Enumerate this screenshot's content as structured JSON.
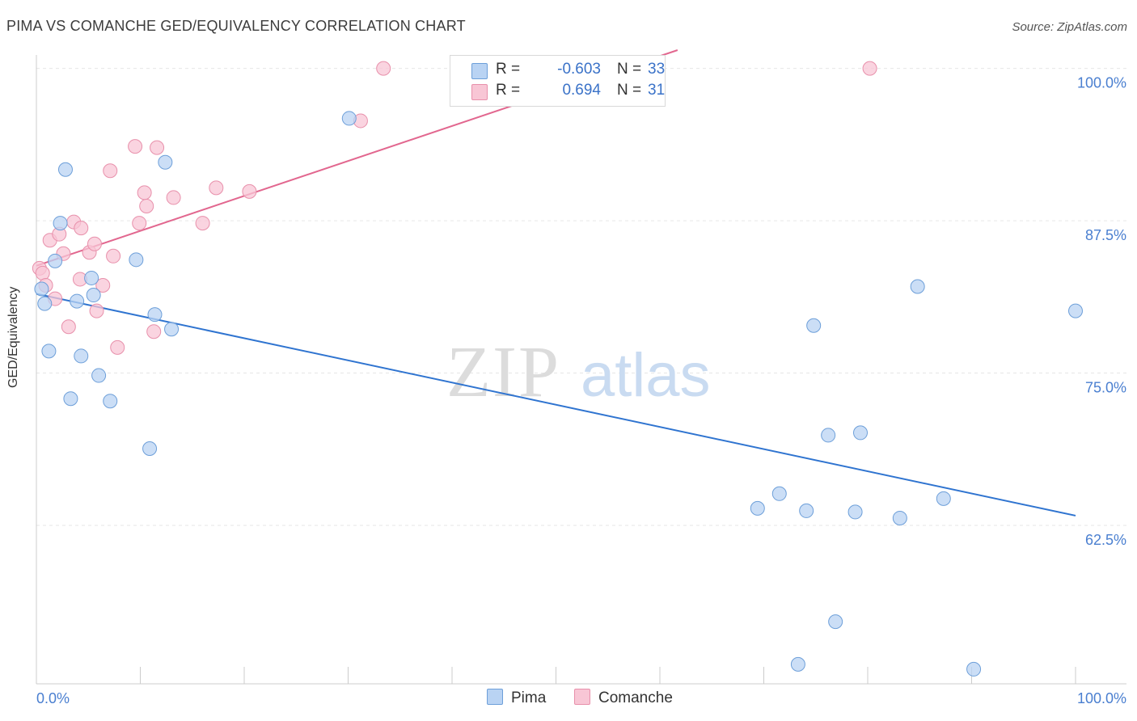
{
  "title": "PIMA VS COMANCHE GED/EQUIVALENCY CORRELATION CHART",
  "source": "Source: ZipAtlas.com",
  "colors": {
    "pima_fill": "#b9d3f3",
    "pima_stroke": "#6d9fd9",
    "pima_line": "#2f74d0",
    "comanche_fill": "#f8c6d5",
    "comanche_stroke": "#e890ab",
    "comanche_line": "#e2678f",
    "tick_label": "#4a7fd0",
    "grid": "#e6e6e6"
  },
  "legend": {
    "rows": [
      {
        "r_label": "R =",
        "r_value": "-0.603",
        "n_label": "N =",
        "n_value": "33"
      },
      {
        "r_label": "R =",
        "r_value": "0.694",
        "n_label": "N =",
        "n_value": "31"
      }
    ]
  },
  "bottom_legend": {
    "pima": "Pima",
    "comanche": "Comanche"
  },
  "chart_data": {
    "type": "scatter",
    "title": "PIMA VS COMANCHE GED/EQUIVALENCY CORRELATION CHART",
    "xlabel": "",
    "ylabel": "GED/Equivalency",
    "xlim": [
      0,
      100
    ],
    "ylim": [
      49.5,
      101.5
    ],
    "x_tick_labels": [
      "0.0%",
      "100.0%"
    ],
    "y_ticks": [
      100.0,
      87.5,
      75.0,
      62.5
    ],
    "y_tick_labels": [
      "100.0%",
      "87.5%",
      "75.0%",
      "62.5%"
    ],
    "watermark": "ZIPatlas",
    "series": [
      {
        "name": "Pima",
        "r": -0.603,
        "n": 33,
        "trend": {
          "x": [
            0,
            100
          ],
          "y": [
            81.5,
            63.3
          ]
        },
        "points": [
          [
            0.5,
            81.9
          ],
          [
            0.8,
            80.7
          ],
          [
            1.2,
            76.8
          ],
          [
            1.8,
            84.2
          ],
          [
            2.3,
            87.3
          ],
          [
            2.8,
            91.7
          ],
          [
            3.3,
            72.9
          ],
          [
            3.9,
            80.9
          ],
          [
            4.3,
            76.4
          ],
          [
            5.3,
            82.8
          ],
          [
            5.5,
            81.4
          ],
          [
            6.0,
            74.8
          ],
          [
            7.1,
            72.7
          ],
          [
            9.6,
            84.3
          ],
          [
            10.9,
            68.8
          ],
          [
            11.4,
            79.8
          ],
          [
            12.4,
            92.3
          ],
          [
            13.0,
            78.6
          ],
          [
            30.1,
            95.9
          ],
          [
            69.4,
            63.9
          ],
          [
            71.5,
            65.1
          ],
          [
            73.3,
            51.1
          ],
          [
            74.1,
            63.7
          ],
          [
            74.8,
            78.9
          ],
          [
            76.2,
            69.9
          ],
          [
            76.9,
            54.6
          ],
          [
            78.8,
            63.6
          ],
          [
            79.3,
            70.1
          ],
          [
            83.1,
            63.1
          ],
          [
            84.8,
            82.1
          ],
          [
            87.3,
            64.7
          ],
          [
            90.2,
            50.7
          ],
          [
            100.0,
            80.1
          ]
        ]
      },
      {
        "name": "Comanche",
        "r": 0.694,
        "n": 31,
        "trend": {
          "x": [
            0,
            61.7
          ],
          "y": [
            83.8,
            101.5
          ]
        },
        "points": [
          [
            0.3,
            83.6
          ],
          [
            0.6,
            83.2
          ],
          [
            0.9,
            82.2
          ],
          [
            1.3,
            85.9
          ],
          [
            1.8,
            81.1
          ],
          [
            2.2,
            86.4
          ],
          [
            2.6,
            84.8
          ],
          [
            3.1,
            78.8
          ],
          [
            3.6,
            87.4
          ],
          [
            4.2,
            82.7
          ],
          [
            4.3,
            86.9
          ],
          [
            5.1,
            84.9
          ],
          [
            5.6,
            85.6
          ],
          [
            5.8,
            80.1
          ],
          [
            6.4,
            82.2
          ],
          [
            7.1,
            91.6
          ],
          [
            7.4,
            84.6
          ],
          [
            7.8,
            77.1
          ],
          [
            9.5,
            93.6
          ],
          [
            9.9,
            87.3
          ],
          [
            10.4,
            89.8
          ],
          [
            10.6,
            88.7
          ],
          [
            11.3,
            78.4
          ],
          [
            11.6,
            93.5
          ],
          [
            13.2,
            89.4
          ],
          [
            16.0,
            87.3
          ],
          [
            17.3,
            90.2
          ],
          [
            20.5,
            89.9
          ],
          [
            31.2,
            95.7
          ],
          [
            33.4,
            100.0
          ],
          [
            80.2,
            100.0
          ]
        ]
      }
    ]
  }
}
